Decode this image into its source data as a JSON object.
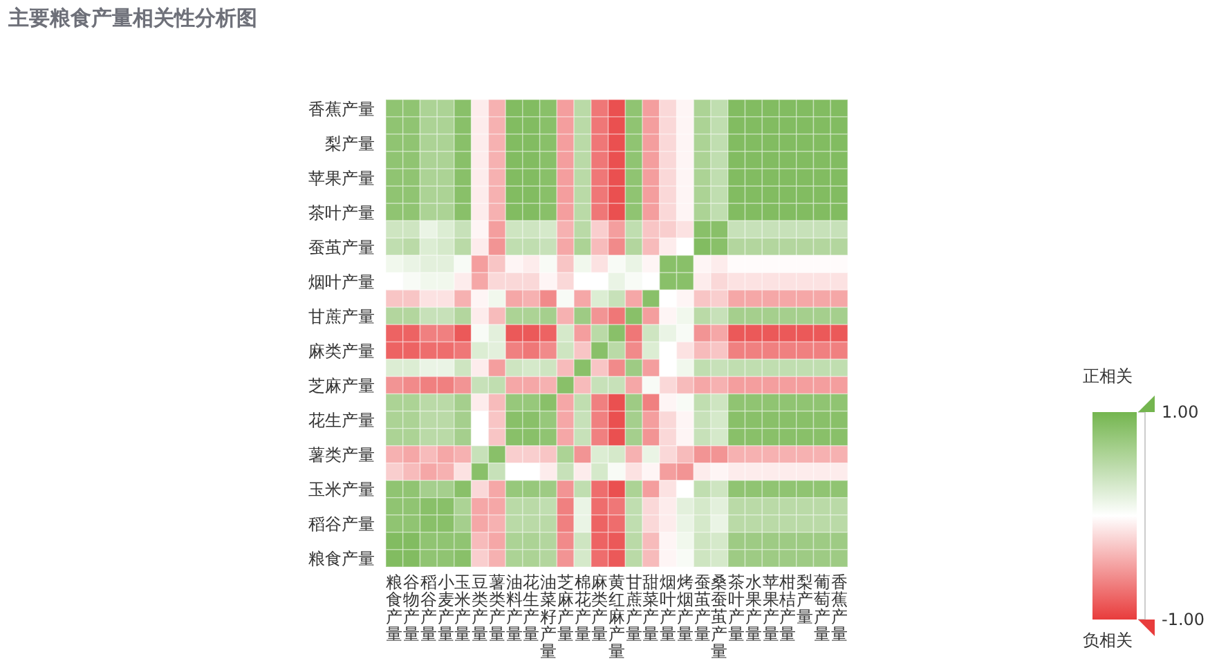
{
  "chart_data": {
    "type": "heatmap",
    "title": "主要粮食产量相关性分析图",
    "categories": [
      "粮食产量",
      "谷物产量",
      "稻谷产量",
      "小麦产量",
      "玉米产量",
      "豆类产量",
      "薯类产量",
      "油料产量",
      "花生产量",
      "油菜籽产量",
      "芝麻产量",
      "棉花产量",
      "麻类产量",
      "黄红麻产量",
      "甘蔗产量",
      "甜菜产量",
      "烟叶产量",
      "烤烟产量",
      "蚕茧产量",
      "桑蚕茧产量",
      "茶叶产量",
      "水果产量",
      "苹果产量",
      "柑桔产量",
      "梨产量",
      "葡萄产量",
      "香蕉产量"
    ],
    "y_categories": [
      "香蕉产量",
      null,
      "梨产量",
      null,
      "苹果产量",
      null,
      "茶叶产量",
      null,
      "蚕茧产量",
      null,
      "烟叶产量",
      null,
      "甘蔗产量",
      null,
      "麻类产量",
      null,
      "芝麻产量",
      null,
      "花生产量",
      null,
      "薯类产量",
      null,
      "玉米产量",
      null,
      "稻谷产量",
      null,
      "粮食产量"
    ],
    "cells": [
      [
        0.8,
        0.8,
        0.6,
        0.6,
        0.85,
        -0.1,
        -0.4,
        0.9,
        0.9,
        0.85,
        -0.5,
        0.5,
        -0.7,
        -0.9,
        0.8,
        -0.5,
        -0.2,
        -0.05,
        0.6,
        0.45,
        0.9,
        0.9,
        0.9,
        0.9,
        0.9,
        0.9,
        0.9
      ],
      [
        0.8,
        0.8,
        0.6,
        0.6,
        0.85,
        -0.1,
        -0.4,
        0.9,
        0.9,
        0.85,
        -0.5,
        0.5,
        -0.7,
        -0.9,
        0.8,
        -0.5,
        -0.2,
        -0.05,
        0.6,
        0.45,
        0.9,
        0.9,
        0.9,
        0.9,
        0.9,
        0.9,
        0.9
      ],
      [
        0.8,
        0.8,
        0.6,
        0.6,
        0.85,
        -0.1,
        -0.4,
        0.9,
        0.9,
        0.85,
        -0.5,
        0.5,
        -0.7,
        -0.9,
        0.8,
        -0.5,
        -0.2,
        -0.05,
        0.6,
        0.45,
        0.9,
        0.9,
        0.9,
        0.9,
        0.9,
        0.9,
        0.9
      ],
      [
        0.8,
        0.8,
        0.6,
        0.6,
        0.85,
        -0.1,
        -0.4,
        0.9,
        0.9,
        0.85,
        -0.5,
        0.5,
        -0.7,
        -0.9,
        0.8,
        -0.5,
        -0.2,
        -0.05,
        0.6,
        0.45,
        0.9,
        0.9,
        0.9,
        0.9,
        0.9,
        0.9,
        0.9
      ],
      [
        0.8,
        0.8,
        0.6,
        0.6,
        0.85,
        -0.1,
        -0.4,
        0.9,
        0.9,
        0.85,
        -0.5,
        0.5,
        -0.7,
        -0.9,
        0.8,
        -0.5,
        -0.2,
        -0.05,
        0.6,
        0.45,
        0.9,
        0.9,
        0.9,
        0.9,
        0.9,
        0.9,
        0.9
      ],
      [
        0.8,
        0.8,
        0.6,
        0.6,
        0.85,
        -0.1,
        -0.4,
        0.9,
        0.9,
        0.85,
        -0.5,
        0.5,
        -0.7,
        -0.9,
        0.8,
        -0.5,
        -0.2,
        -0.05,
        0.6,
        0.45,
        0.9,
        0.9,
        0.9,
        0.9,
        0.9,
        0.9,
        0.9
      ],
      [
        0.8,
        0.8,
        0.6,
        0.6,
        0.85,
        -0.1,
        -0.4,
        0.9,
        0.9,
        0.85,
        -0.5,
        0.5,
        -0.7,
        -0.9,
        0.8,
        -0.5,
        -0.2,
        -0.05,
        0.6,
        0.45,
        0.9,
        0.9,
        0.9,
        0.9,
        0.9,
        0.9,
        0.9
      ],
      [
        0.35,
        0.35,
        0.15,
        0.25,
        0.4,
        -0.05,
        -0.5,
        0.35,
        0.35,
        0.3,
        -0.4,
        0.5,
        -0.25,
        -0.5,
        0.45,
        -0.3,
        -0.25,
        -0.15,
        0.85,
        0.85,
        0.4,
        0.4,
        0.4,
        0.4,
        0.4,
        0.4,
        0.4
      ],
      [
        0.45,
        0.5,
        0.25,
        0.3,
        0.5,
        -0.1,
        -0.55,
        0.45,
        0.45,
        0.4,
        -0.45,
        0.6,
        -0.35,
        -0.6,
        0.55,
        -0.35,
        -0.1,
        0,
        0.9,
        0.85,
        0.55,
        0.55,
        0.55,
        0.55,
        0.55,
        0.55,
        0.55
      ],
      [
        0.1,
        0.15,
        0.2,
        0.2,
        0.05,
        -0.5,
        -0.3,
        -0.05,
        -0.1,
        0.05,
        -0.3,
        0.1,
        -0.15,
        0.05,
        0.15,
        -0.05,
        0.85,
        0.85,
        -0.05,
        -0.1,
        -0.02,
        -0.02,
        -0.02,
        -0.02,
        -0.02,
        -0.02,
        -0.02
      ],
      [
        0,
        0.05,
        0.1,
        0.1,
        -0.1,
        -0.45,
        -0.2,
        -0.2,
        -0.2,
        -0.05,
        -0.2,
        0,
        0,
        0.15,
        0.05,
        0,
        0.85,
        0.85,
        -0.1,
        -0.2,
        -0.15,
        -0.15,
        -0.15,
        -0.15,
        -0.15,
        -0.15,
        -0.15
      ],
      [
        -0.3,
        -0.3,
        -0.15,
        -0.15,
        -0.4,
        -0.05,
        0.1,
        -0.45,
        -0.4,
        -0.6,
        0.05,
        -0.45,
        0.25,
        0.4,
        -0.45,
        0.85,
        0,
        -0.05,
        -0.3,
        -0.25,
        -0.45,
        -0.45,
        -0.45,
        -0.45,
        -0.45,
        -0.45,
        -0.45
      ],
      [
        0.55,
        0.55,
        0.4,
        0.4,
        0.55,
        -0.1,
        -0.35,
        0.6,
        0.6,
        0.65,
        -0.4,
        0.7,
        -0.55,
        -0.7,
        0.85,
        -0.5,
        -0.05,
        0.1,
        0.5,
        0.4,
        0.65,
        0.65,
        0.65,
        0.65,
        0.65,
        0.65,
        0.65
      ],
      [
        -0.8,
        -0.8,
        -0.65,
        -0.65,
        -0.85,
        0.05,
        0.2,
        -0.85,
        -0.85,
        -0.8,
        0.3,
        -0.5,
        0.5,
        0.85,
        -0.7,
        0.35,
        0.15,
        0.05,
        -0.55,
        -0.45,
        -0.85,
        -0.85,
        -0.85,
        -0.85,
        -0.85,
        -0.85,
        -0.85
      ],
      [
        -0.8,
        -0.8,
        -0.75,
        -0.75,
        -0.7,
        0.25,
        0.2,
        -0.65,
        -0.7,
        -0.6,
        0.35,
        -0.3,
        0.85,
        0.5,
        -0.6,
        0.25,
        0,
        -0.15,
        -0.35,
        -0.3,
        -0.65,
        -0.65,
        -0.65,
        -0.65,
        -0.65,
        -0.65,
        -0.65
      ],
      [
        0.25,
        0.25,
        0.15,
        0.15,
        0.35,
        -0.1,
        -0.5,
        0.35,
        0.3,
        0.35,
        -0.35,
        0.85,
        -0.3,
        -0.6,
        0.7,
        -0.5,
        0,
        0.1,
        0.45,
        0.4,
        0.45,
        0.45,
        0.45,
        0.45,
        0.45,
        0.45,
        0.45
      ],
      [
        -0.55,
        -0.6,
        -0.65,
        -0.65,
        -0.55,
        0.4,
        0.45,
        -0.45,
        -0.45,
        -0.4,
        0.85,
        -0.35,
        0.4,
        0.4,
        -0.45,
        0.05,
        -0.2,
        -0.35,
        -0.45,
        -0.4,
        -0.5,
        -0.5,
        -0.5,
        -0.5,
        -0.5,
        -0.5,
        -0.5
      ],
      [
        0.6,
        0.6,
        0.5,
        0.5,
        0.65,
        -0.1,
        -0.35,
        0.75,
        0.75,
        0.85,
        -0.45,
        0.45,
        -0.65,
        -0.9,
        0.7,
        -0.65,
        -0.05,
        0.05,
        0.45,
        0.35,
        0.8,
        0.8,
        0.8,
        0.8,
        0.8,
        0.8,
        0.8
      ],
      [
        0.6,
        0.6,
        0.5,
        0.5,
        0.65,
        0,
        -0.3,
        0.85,
        0.85,
        0.75,
        -0.45,
        0.4,
        -0.65,
        -0.9,
        0.65,
        -0.5,
        -0.2,
        -0.05,
        0.4,
        0.3,
        0.85,
        0.85,
        0.85,
        0.85,
        0.85,
        0.85,
        0.85
      ],
      [
        0.6,
        0.6,
        0.5,
        0.5,
        0.65,
        0,
        -0.3,
        0.85,
        0.85,
        0.8,
        -0.45,
        0.4,
        -0.65,
        -0.9,
        0.65,
        -0.55,
        -0.2,
        -0.05,
        0.4,
        0.3,
        0.85,
        0.85,
        0.85,
        0.85,
        0.85,
        0.85,
        0.85
      ],
      [
        -0.4,
        -0.45,
        -0.35,
        -0.45,
        -0.4,
        0.4,
        0.85,
        -0.25,
        -0.25,
        -0.3,
        0.6,
        -0.55,
        0.25,
        0.3,
        -0.4,
        0.15,
        -0.2,
        -0.35,
        -0.55,
        -0.55,
        -0.4,
        -0.4,
        -0.4,
        -0.4,
        -0.4,
        -0.4,
        -0.4
      ],
      [
        -0.25,
        -0.35,
        -0.45,
        -0.4,
        -0.15,
        0.85,
        0.4,
        0,
        0,
        -0.1,
        0.4,
        -0.1,
        0.3,
        0.05,
        -0.15,
        -0.05,
        -0.5,
        -0.55,
        -0.1,
        -0.05,
        -0.1,
        -0.1,
        -0.1,
        -0.1,
        -0.1,
        -0.1,
        -0.1
      ],
      [
        0.8,
        0.8,
        0.65,
        0.65,
        0.85,
        -0.2,
        -0.45,
        0.75,
        0.75,
        0.7,
        -0.55,
        0.45,
        -0.75,
        -0.9,
        0.6,
        -0.5,
        -0.15,
        0,
        0.45,
        0.35,
        0.8,
        0.8,
        0.8,
        0.8,
        0.8,
        0.8,
        0.8
      ],
      [
        0.8,
        0.8,
        0.85,
        0.85,
        0.6,
        -0.45,
        -0.45,
        0.5,
        0.5,
        0.45,
        -0.65,
        0.15,
        -0.75,
        -0.7,
        0.45,
        -0.2,
        -0.1,
        0.2,
        0.3,
        0.2,
        0.5,
        0.5,
        0.5,
        0.5,
        0.5,
        0.5,
        0.5
      ],
      [
        0.8,
        0.8,
        0.85,
        0.85,
        0.65,
        -0.45,
        -0.4,
        0.5,
        0.5,
        0.5,
        -0.65,
        0.15,
        -0.8,
        -0.75,
        0.45,
        -0.2,
        -0.1,
        0.15,
        0.3,
        0.15,
        0.5,
        0.5,
        0.5,
        0.5,
        0.5,
        0.5,
        0.5
      ],
      [
        0.9,
        0.9,
        0.8,
        0.8,
        0.8,
        -0.35,
        -0.45,
        0.6,
        0.6,
        0.55,
        -0.6,
        0.35,
        -0.8,
        -0.85,
        0.5,
        -0.35,
        -0.05,
        0.1,
        0.35,
        0.3,
        0.7,
        0.7,
        0.7,
        0.7,
        0.7,
        0.7,
        0.7
      ],
      [
        0.9,
        0.9,
        0.8,
        0.8,
        0.85,
        -0.25,
        -0.4,
        0.6,
        0.6,
        0.55,
        -0.55,
        0.3,
        -0.75,
        -0.85,
        0.5,
        -0.35,
        -0.05,
        0.05,
        0.35,
        0.3,
        0.7,
        0.7,
        0.7,
        0.7,
        0.7,
        0.7,
        0.7
      ]
    ],
    "clim": [
      -1,
      1
    ],
    "cticks": [
      {
        "value": 1,
        "label": "1.00"
      },
      {
        "value": -1,
        "label": "-1.00"
      }
    ],
    "annotations": [
      "正相关",
      "负相关"
    ]
  }
}
